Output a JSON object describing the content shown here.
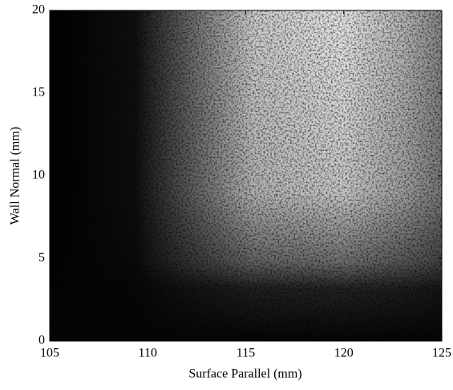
{
  "chart_data": {
    "type": "image",
    "x_label": "Surface Parallel (mm)",
    "y_label": "Wall Normal (mm)",
    "xlim": [
      105,
      125
    ],
    "ylim": [
      0,
      20
    ],
    "xticks": [
      105,
      110,
      115,
      120,
      125
    ],
    "yticks": [
      0,
      5,
      10,
      15,
      20
    ]
  }
}
